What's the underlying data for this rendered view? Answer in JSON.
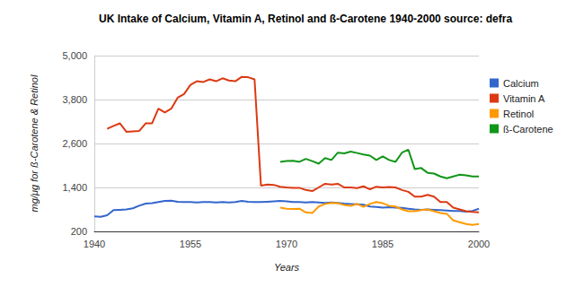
{
  "chart_data": {
    "type": "line",
    "title": "UK Intake of Calcium, Vitamin A, Retinol and ß-Carotene 1940-2000 source: defra",
    "x_label": "Years",
    "y_label": "mg/μg for ß-Carotene & Retinol",
    "x": [
      1940,
      1941,
      1942,
      1943,
      1944,
      1945,
      1946,
      1947,
      1948,
      1949,
      1950,
      1951,
      1952,
      1953,
      1954,
      1955,
      1956,
      1957,
      1958,
      1959,
      1960,
      1961,
      1962,
      1963,
      1964,
      1965,
      1966,
      1967,
      1968,
      1969,
      1970,
      1971,
      1972,
      1973,
      1974,
      1975,
      1976,
      1977,
      1978,
      1979,
      1980,
      1981,
      1982,
      1983,
      1984,
      1985,
      1986,
      1987,
      1988,
      1989,
      1990,
      1991,
      1992,
      1993,
      1994,
      1995,
      1996,
      1997,
      1998,
      1999,
      2000
    ],
    "xlim": [
      1940,
      2000
    ],
    "xticks": [
      1940,
      1955,
      1970,
      1985,
      2000
    ],
    "ylim": [
      200,
      5000
    ],
    "yticks": [
      200,
      {
        "value": 1400,
        "label": "1,400"
      },
      {
        "value": 2600,
        "label": "2,600"
      },
      {
        "value": 3800,
        "label": "3,800"
      },
      {
        "value": 5000,
        "label": "5,000"
      }
    ],
    "grid": true,
    "legend": "right",
    "series": [
      {
        "name": "Calcium",
        "color": "#3366cc",
        "values": [
          610,
          600,
          640,
          780,
          790,
          800,
          830,
          900,
          960,
          970,
          1000,
          1030,
          1040,
          1010,
          1000,
          1000,
          990,
          1000,
          1000,
          990,
          1000,
          990,
          1000,
          1030,
          1010,
          1000,
          1000,
          1010,
          1020,
          1030,
          1020,
          1000,
          1000,
          990,
          1000,
          990,
          980,
          990,
          980,
          960,
          950,
          940,
          930,
          880,
          870,
          850,
          860,
          850,
          840,
          820,
          800,
          790,
          800,
          790,
          780,
          770,
          760,
          760,
          740,
          760,
          820
        ]
      },
      {
        "name": "Vitamin A",
        "color": "#dc3912",
        "values": [
          null,
          null,
          3000,
          3080,
          3150,
          2920,
          2930,
          2940,
          3150,
          3150,
          3550,
          3450,
          3550,
          3850,
          3950,
          4200,
          4300,
          4280,
          4350,
          4300,
          4380,
          4320,
          4300,
          4420,
          4410,
          4350,
          1450,
          1480,
          1470,
          1420,
          1400,
          1390,
          1390,
          1330,
          1300,
          1400,
          1500,
          1480,
          1500,
          1400,
          1400,
          1380,
          1430,
          1350,
          1420,
          1400,
          1410,
          1400,
          1330,
          1280,
          1150,
          1150,
          1200,
          1150,
          1000,
          1000,
          850,
          800,
          750,
          730,
          720
        ]
      },
      {
        "name": "Retinol",
        "color": "#ff9900",
        "values": [
          null,
          null,
          null,
          null,
          null,
          null,
          null,
          null,
          null,
          null,
          null,
          null,
          null,
          null,
          null,
          null,
          null,
          null,
          null,
          null,
          null,
          null,
          null,
          null,
          null,
          null,
          null,
          null,
          null,
          850,
          820,
          810,
          820,
          720,
          700,
          880,
          950,
          980,
          970,
          920,
          900,
          950,
          870,
          950,
          1000,
          970,
          900,
          880,
          800,
          750,
          750,
          780,
          800,
          750,
          700,
          680,
          500,
          450,
          400,
          380,
          400
        ]
      },
      {
        "name": "ß-Carotene",
        "color": "#109618",
        "values": [
          null,
          null,
          null,
          null,
          null,
          null,
          null,
          null,
          null,
          null,
          null,
          null,
          null,
          null,
          null,
          null,
          null,
          null,
          null,
          null,
          null,
          null,
          null,
          null,
          null,
          null,
          null,
          null,
          null,
          2100,
          2120,
          2130,
          2100,
          2180,
          2120,
          2050,
          2200,
          2150,
          2350,
          2330,
          2380,
          2340,
          2300,
          2270,
          2150,
          2250,
          2150,
          2100,
          2350,
          2430,
          1900,
          1930,
          1800,
          1780,
          1700,
          1650,
          1700,
          1750,
          1730,
          1700,
          1700
        ]
      }
    ]
  }
}
